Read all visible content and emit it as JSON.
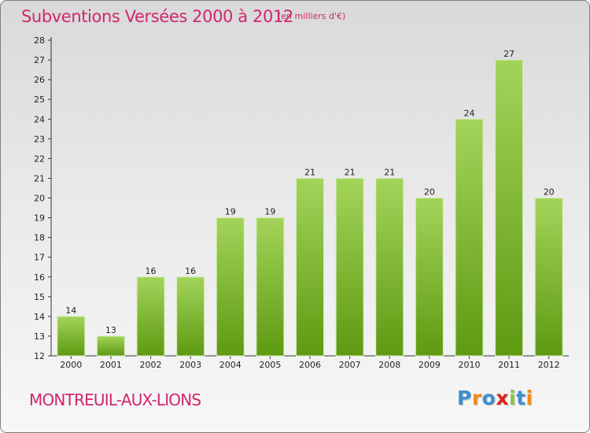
{
  "title": "Subventions Versées 2000 à 2012",
  "subtitle": "(en milliers d'€)",
  "commune": "MONTREUIL-AUX-LIONS",
  "logo": {
    "letters": [
      {
        "char": "P",
        "color": "#3a8fd0"
      },
      {
        "char": "r",
        "color": "#f08a1c"
      },
      {
        "char": "o",
        "color": "#3a8fd0"
      },
      {
        "char": "x",
        "color": "#e0201c"
      },
      {
        "char": "i",
        "color": "#8cc63f"
      },
      {
        "char": "t",
        "color": "#3a8fd0"
      },
      {
        "char": "i",
        "color": "#f08a1c"
      }
    ]
  },
  "colors": {
    "bar_light": "#a3d45a",
    "bar_dark": "#5e9a12",
    "accent": "#d0266e"
  },
  "chart_data": {
    "type": "bar",
    "categories": [
      "2000",
      "2001",
      "2002",
      "2003",
      "2004",
      "2005",
      "2006",
      "2007",
      "2008",
      "2009",
      "2010",
      "2011",
      "2012"
    ],
    "values": [
      14,
      13,
      16,
      16,
      19,
      19,
      21,
      21,
      21,
      20,
      24,
      27,
      20
    ],
    "title": "Subventions Versées 2000 à 2012",
    "xlabel": "",
    "ylabel": "",
    "ylim": [
      12,
      28
    ],
    "yticks": [
      12,
      13,
      14,
      15,
      16,
      17,
      18,
      19,
      20,
      21,
      22,
      23,
      24,
      25,
      26,
      27,
      28
    ],
    "grid": false,
    "legend": "none"
  }
}
